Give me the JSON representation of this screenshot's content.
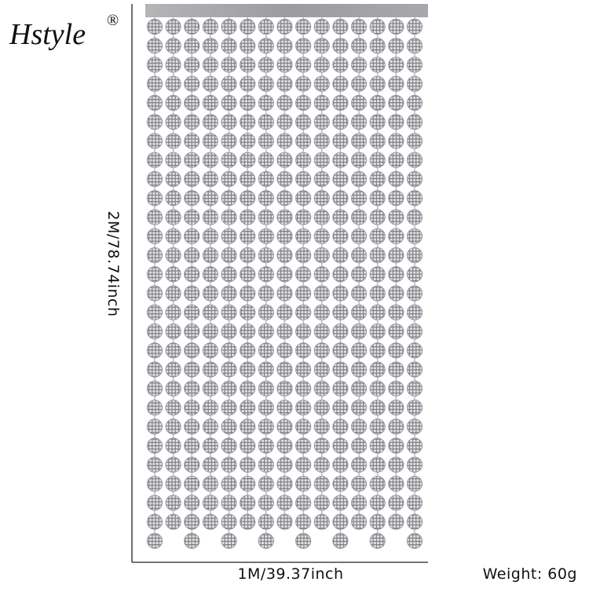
{
  "brand": {
    "name": "Hstyle",
    "mark": "®"
  },
  "dimensions": {
    "height": "2M/78.74inch",
    "width": "1M/39.37inch"
  },
  "weight": "Weight: 60g"
}
